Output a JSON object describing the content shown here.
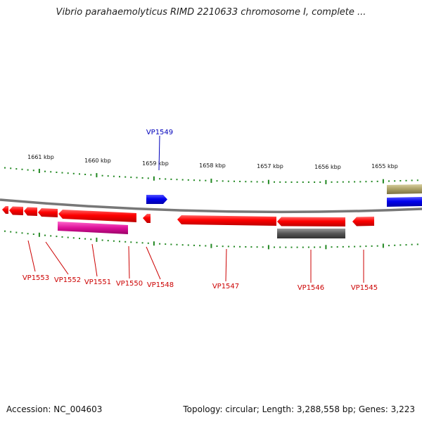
{
  "title": "Vibrio parahaemolyticus RIMD 2210633 chromosome I, complete ...",
  "footer": {
    "accession": "Accession: NC_004603",
    "summary": "Topology: circular; Length: 3,288,558 bp; Genes: 3,223"
  },
  "scale_labels": [
    "1661 kbp",
    "1660 kbp",
    "1659 kbp",
    "1658 kbp",
    "1657 kbp",
    "1656 kbp",
    "1655 kbp"
  ],
  "genes": [
    {
      "label": "VP1549",
      "color": "blue"
    },
    {
      "label": "VP1553",
      "color": "red"
    },
    {
      "label": "VP1552",
      "color": "red"
    },
    {
      "label": "VP1551",
      "color": "red"
    },
    {
      "label": "VP1550",
      "color": "red"
    },
    {
      "label": "VP1548",
      "color": "red"
    },
    {
      "label": "VP1547",
      "color": "red"
    },
    {
      "label": "VP1546",
      "color": "red"
    },
    {
      "label": "VP1545",
      "color": "red"
    }
  ],
  "colors": {
    "forward_gene": "#0000ee",
    "reverse_gene": "#ee0000",
    "magenta_feature": "#dd1199",
    "gray_feature": "#555555",
    "olive_feature": "#aaa066",
    "backbone": "#777777",
    "tick": "#228822"
  }
}
